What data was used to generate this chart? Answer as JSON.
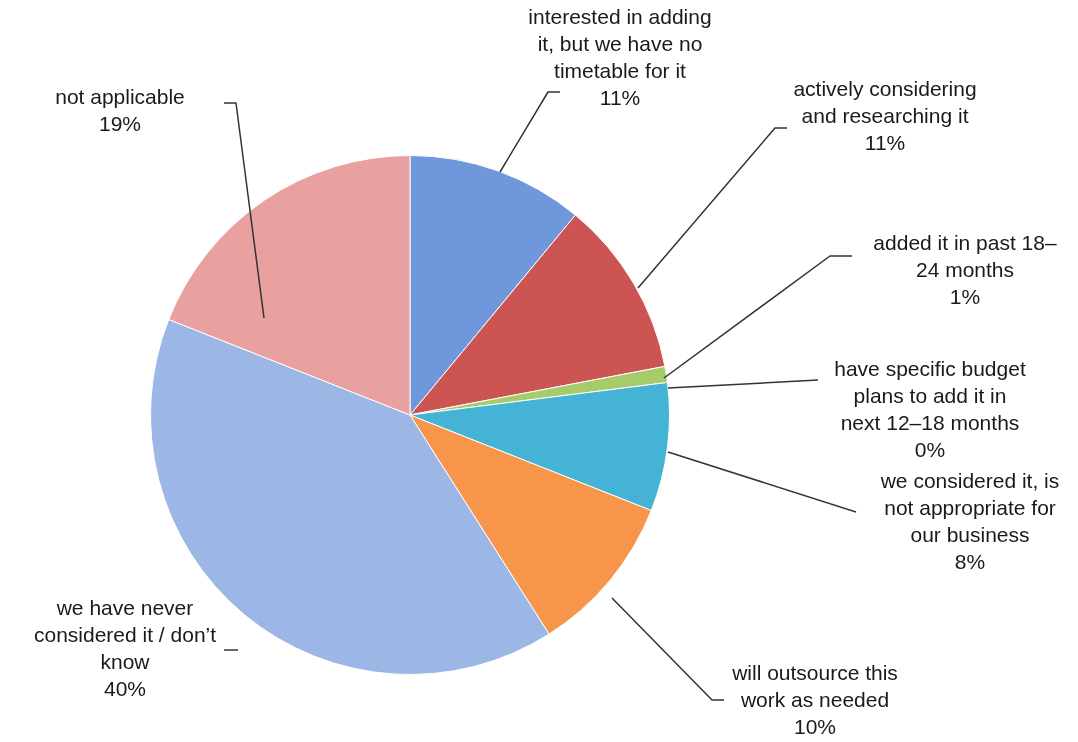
{
  "chart_data": {
    "type": "pie",
    "categories": [
      "interested in adding it, but we have no timetable for it",
      "actively considering and researching it",
      "added it in past 18–24 months",
      "have specific budget plans to add it in next 12–18 months",
      "we considered it, is not appropriate for our business",
      "will outsource this work as needed",
      "we have never considered it / don’t know",
      "not applicable"
    ],
    "values": [
      11,
      11,
      1,
      0,
      8,
      10,
      40,
      19
    ],
    "value_labels": [
      "11%",
      "11%",
      "1%",
      "0%",
      "8%",
      "10%",
      "40%",
      "19%"
    ],
    "colors": [
      "#6f97dc",
      "#cc5553",
      "#a6cc6a",
      "#8f78b5",
      "#45b3d6",
      "#f7954a",
      "#9cb6e6",
      "#e8a0a0"
    ],
    "legend": false
  }
}
